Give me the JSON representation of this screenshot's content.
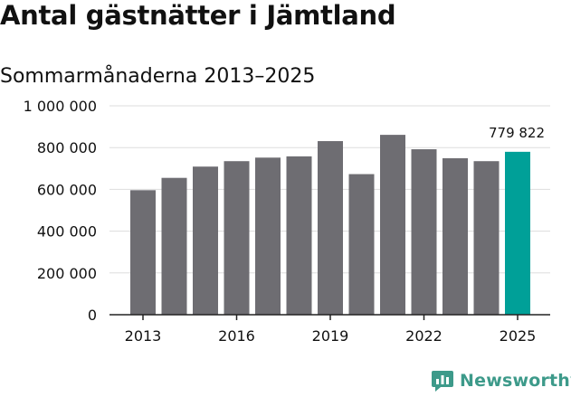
{
  "chart_data": {
    "type": "bar",
    "title": "Antal gästnätter i Jämtland",
    "subtitle": "Sommarmånaderna 2013–2025",
    "xlabel": "",
    "ylabel": "",
    "categories": [
      "2013",
      "2014",
      "2015",
      "2016",
      "2017",
      "2018",
      "2019",
      "2020",
      "2021",
      "2022",
      "2023",
      "2024",
      "2025"
    ],
    "x_tick_labels": [
      "2013",
      "2016",
      "2019",
      "2022",
      "2025"
    ],
    "values": [
      596000,
      655000,
      709000,
      735000,
      752000,
      758000,
      831000,
      673000,
      861000,
      792000,
      749000,
      735000,
      779822
    ],
    "ylim": [
      0,
      1000000
    ],
    "y_ticks": [
      0,
      200000,
      400000,
      600000,
      800000,
      1000000
    ],
    "y_tick_labels": [
      "0",
      "200 000",
      "400 000",
      "600 000",
      "800 000",
      "1 000 000"
    ],
    "highlight_index": 12,
    "annotation": "779 822",
    "grid": true,
    "colors": {
      "bar": "#6e6d72",
      "highlight": "#00a098",
      "grid": "#dddddd",
      "axis": "#222222",
      "text": "#111111",
      "brand": "#3d9a8a"
    }
  },
  "brand": {
    "name": "Newsworthy",
    "icon": "newsworthy-logo-icon"
  }
}
